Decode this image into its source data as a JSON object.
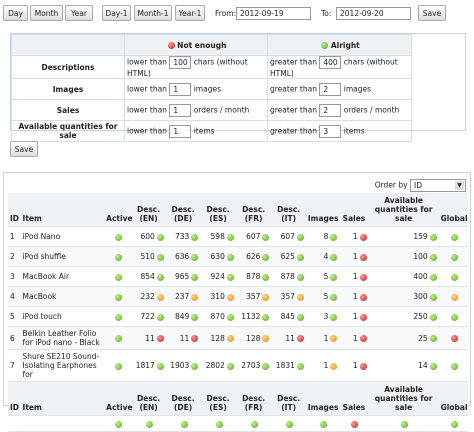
{
  "toolbar": {
    "period_buttons": [
      "Day",
      "Month",
      "Year"
    ],
    "offset_buttons": [
      "Day-1",
      "Month-1",
      "Year-1"
    ],
    "from_label": "From:",
    "from": "2012-09-19",
    "to_label": "To:",
    "to": "2012-09-20",
    "save": "Save"
  },
  "settings": {
    "not_enough": "Not enough",
    "alright": "Alright",
    "rows": [
      {
        "label": "Descriptions",
        "low_text": "lower than",
        "low": 100,
        "low_unit": "chars (without HTML)",
        "high_text": "greater than",
        "high": 400,
        "high_unit": "chars (without HTML)"
      },
      {
        "label": "Images",
        "low_text": "lower than",
        "low": 1,
        "low_unit": "images",
        "high_text": "greater than",
        "high": 2,
        "high_unit": "images"
      },
      {
        "label": "Sales",
        "low_text": "lower than",
        "low": 1,
        "low_unit": "orders / month",
        "high_text": "greater than",
        "high": 2,
        "high_unit": "orders / month"
      },
      {
        "label": "Available quantities for sale",
        "low_text": "lower than",
        "low": 1,
        "low_unit": "items",
        "high_text": "greater than",
        "high": 3,
        "high_unit": "items"
      }
    ],
    "save": "Save"
  },
  "catalog": {
    "order_by_label": "Order by",
    "order_by": "ID",
    "columns": [
      "ID",
      "Item",
      "Active",
      "Desc. (EN)",
      "Desc. (DE)",
      "Desc. (ES)",
      "Desc. (FR)",
      "Desc. (IT)",
      "Images",
      "Sales",
      "Available quantities for sale",
      "Global"
    ],
    "rows": [
      {
        "id": 1,
        "item": "iPod Nano",
        "active": "green",
        "values": [
          600,
          733,
          598,
          607,
          607,
          8,
          1,
          159
        ],
        "status": [
          "green",
          "green",
          "green",
          "green",
          "green",
          "green",
          "red",
          "green"
        ],
        "global": "green"
      },
      {
        "id": 2,
        "item": "iPod shuffle",
        "active": "green",
        "values": [
          510,
          636,
          630,
          626,
          625,
          4,
          1,
          100
        ],
        "status": [
          "green",
          "green",
          "green",
          "green",
          "green",
          "green",
          "red",
          "green"
        ],
        "global": "green"
      },
      {
        "id": 3,
        "item": "MacBook Air",
        "active": "green",
        "values": [
          854,
          965,
          924,
          878,
          878,
          5,
          1,
          400
        ],
        "status": [
          "green",
          "green",
          "green",
          "green",
          "green",
          "green",
          "red",
          "green"
        ],
        "global": "green"
      },
      {
        "id": 4,
        "item": "MacBook",
        "active": "green",
        "values": [
          232,
          237,
          310,
          357,
          357,
          5,
          1,
          300
        ],
        "status": [
          "orange",
          "orange",
          "orange",
          "orange",
          "orange",
          "green",
          "red",
          "green"
        ],
        "global": "orange"
      },
      {
        "id": 5,
        "item": "iPod touch",
        "active": "green",
        "values": [
          722,
          849,
          870,
          1132,
          845,
          3,
          1,
          250
        ],
        "status": [
          "green",
          "green",
          "green",
          "green",
          "green",
          "green",
          "red",
          "green"
        ],
        "global": "green"
      },
      {
        "id": 6,
        "item": "Belkin Leather Folio for iPod nano - Black",
        "active": "green",
        "values": [
          11,
          11,
          128,
          128,
          11,
          1,
          1,
          25
        ],
        "status": [
          "red",
          "red",
          "orange",
          "orange",
          "red",
          "orange",
          "red",
          "green"
        ],
        "global": "red"
      },
      {
        "id": 7,
        "item": "Shure SE210 Sound-Isolating Earphones for",
        "active": "green",
        "values": [
          1817,
          1903,
          2802,
          2703,
          1831,
          1,
          1,
          14
        ],
        "status": [
          "green",
          "green",
          "green",
          "green",
          "green",
          "orange",
          "red",
          "green"
        ],
        "global": "green"
      }
    ],
    "footer": [
      "green",
      "green",
      "green",
      "green",
      "green",
      "green",
      "green",
      "red",
      "green",
      "green"
    ]
  }
}
